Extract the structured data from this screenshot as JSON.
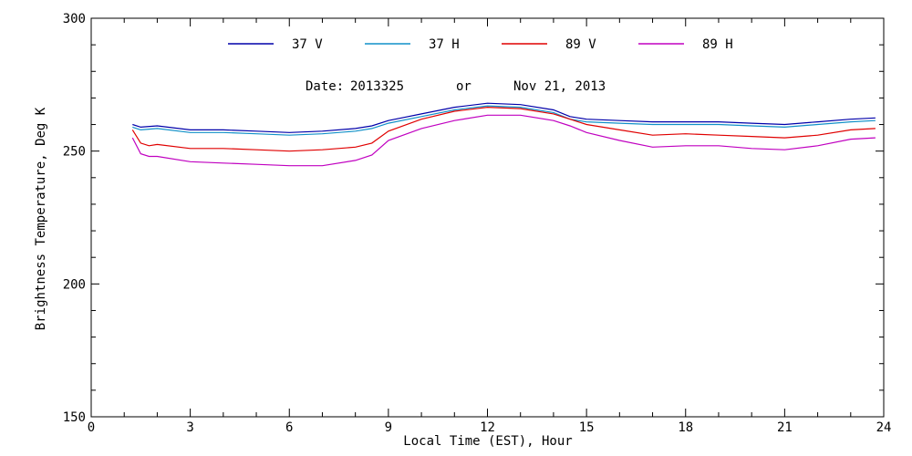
{
  "chart_data": {
    "type": "line",
    "xlabel": "Local Time (EST), Hour",
    "ylabel": "Brightness Temperature, Deg K",
    "xlim": [
      0,
      24
    ],
    "ylim": [
      150,
      300
    ],
    "xticks": [
      0,
      3,
      6,
      9,
      12,
      15,
      18,
      21,
      24
    ],
    "yticks": [
      150,
      200,
      250,
      300
    ],
    "xtick_labels": [
      "0",
      "3",
      "6",
      "9",
      "12",
      "15",
      "18",
      "21",
      "24"
    ],
    "ytick_labels": [
      "150",
      "200",
      "250",
      "300"
    ],
    "annotation": {
      "date_label": "Date:",
      "date_code": "2013325",
      "connector": "or",
      "date_text": "Nov 21, 2013"
    },
    "legend_position": "top",
    "grid": false,
    "series": [
      {
        "name": "37 V",
        "color": "#0000aa",
        "x": [
          1.25,
          1.5,
          2,
          3,
          4,
          5,
          6,
          7,
          8,
          8.5,
          9,
          10,
          11,
          12,
          13,
          14,
          14.5,
          15,
          16,
          17,
          18,
          19,
          20,
          21,
          22,
          23,
          23.75
        ],
        "y": [
          260,
          259,
          259.5,
          258,
          258,
          257.5,
          257,
          257.5,
          258.5,
          259.5,
          261.5,
          264,
          266.5,
          268,
          267.5,
          265.5,
          263,
          262,
          261.5,
          261,
          261,
          261,
          260.5,
          260,
          261,
          262,
          262.5
        ]
      },
      {
        "name": "37 H",
        "color": "#1190c8",
        "x": [
          1.25,
          1.5,
          2,
          3,
          4,
          5,
          6,
          7,
          8,
          8.5,
          9,
          10,
          11,
          12,
          13,
          14,
          14.5,
          15,
          16,
          17,
          18,
          19,
          20,
          21,
          22,
          23,
          23.75
        ],
        "y": [
          259,
          258,
          258.5,
          257,
          257,
          256.5,
          256,
          256.5,
          257.5,
          258.5,
          260.5,
          263,
          265.5,
          267,
          266.5,
          264.5,
          262,
          261,
          260.5,
          260,
          260,
          260,
          259.5,
          259,
          260,
          261,
          261.5
        ]
      },
      {
        "name": "89 V",
        "color": "#e00000",
        "x": [
          1.25,
          1.5,
          1.75,
          2,
          3,
          4,
          5,
          6,
          7,
          8,
          8.5,
          9,
          10,
          11,
          12,
          13,
          14,
          14.5,
          15,
          16,
          17,
          18,
          19,
          20,
          21,
          22,
          23,
          23.75
        ],
        "y": [
          258,
          253,
          252,
          252.5,
          251,
          251,
          250.5,
          250,
          250.5,
          251.5,
          253,
          257.5,
          262,
          265,
          266.5,
          266,
          264,
          262,
          260,
          258,
          256,
          256.5,
          256,
          255.5,
          255,
          256,
          258,
          258.5
        ]
      },
      {
        "name": "89 H",
        "color": "#c000c0",
        "x": [
          1.25,
          1.5,
          1.75,
          2,
          3,
          4,
          5,
          6,
          7,
          8,
          8.5,
          9,
          10,
          11,
          12,
          13,
          14,
          14.5,
          15,
          16,
          17,
          18,
          19,
          20,
          21,
          22,
          23,
          23.75
        ],
        "y": [
          255,
          249,
          248,
          248,
          246,
          245.5,
          245,
          244.5,
          244.5,
          246.5,
          248.5,
          254,
          258.5,
          261.5,
          263.5,
          263.5,
          261.5,
          259.5,
          257,
          254,
          251.5,
          252,
          252,
          251,
          250.5,
          252,
          254.5,
          255
        ]
      }
    ]
  }
}
